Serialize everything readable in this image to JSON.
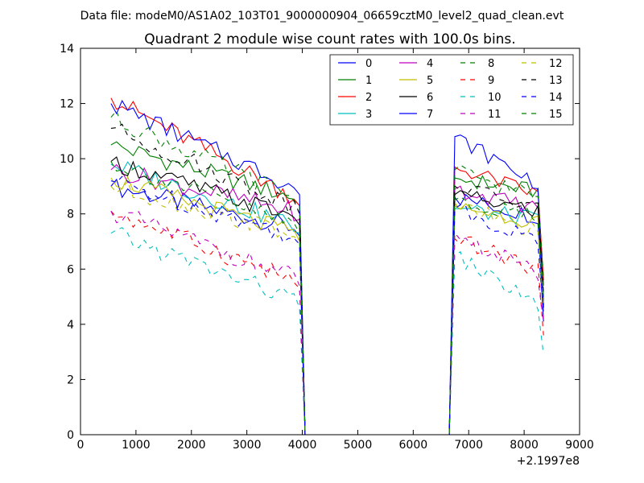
{
  "chart_data": {
    "type": "line",
    "suptitle": "Data file: modeM0/AS1A02_103T01_9000000904_06659cztM0_level2_quad_clean.evt",
    "title": "Quadrant 2 module wise count rates with 100.0s bins.",
    "xlabel": "",
    "ylabel": "",
    "x_offset_label": "+2.1997e8",
    "xlim": [
      0,
      9000
    ],
    "ylim": [
      0,
      14
    ],
    "xticks": [
      0,
      1000,
      2000,
      3000,
      4000,
      5000,
      6000,
      7000,
      8000,
      9000
    ],
    "yticks": [
      0,
      2,
      4,
      6,
      8,
      10,
      12,
      14
    ],
    "x_seg1": [
      550,
      650,
      750,
      850,
      950,
      1050,
      1150,
      1250,
      1350,
      1450,
      1550,
      1650,
      1750,
      1850,
      1950,
      2050,
      2150,
      2250,
      2350,
      2450,
      2550,
      2650,
      2750,
      2850,
      2950,
      3050,
      3150,
      3250,
      3350,
      3450,
      3550,
      3650,
      3750,
      3850,
      3950,
      4050
    ],
    "gap": [
      4150,
      6650
    ],
    "x_seg2": [
      6750,
      6850,
      6950,
      7050,
      7150,
      7250,
      7350,
      7450,
      7550,
      7650,
      7750,
      7850,
      7950,
      8050,
      8150,
      8250,
      8350
    ],
    "series": [
      {
        "name": "0",
        "color": "#0000ff",
        "dash": "solid",
        "seg1_base": 9.0,
        "seg1_end": 7.5,
        "seg2_base": 8.6,
        "seg2_end": 7.9,
        "last": 4.1
      },
      {
        "name": "1",
        "color": "#008000",
        "dash": "solid",
        "seg1_base": 10.5,
        "seg1_end": 8.6,
        "seg2_base": 9.3,
        "seg2_end": 8.8,
        "last": 5.4
      },
      {
        "name": "2",
        "color": "#ff0000",
        "dash": "solid",
        "seg1_base": 12.2,
        "seg1_end": 8.6,
        "seg2_base": 9.7,
        "seg2_end": 8.7,
        "last": 5.6
      },
      {
        "name": "3",
        "color": "#00bfbf",
        "dash": "solid",
        "seg1_base": 9.8,
        "seg1_end": 7.6,
        "seg2_base": 8.2,
        "seg2_end": 7.8,
        "last": 4.6
      },
      {
        "name": "4",
        "color": "#bf00bf",
        "dash": "solid",
        "seg1_base": 9.6,
        "seg1_end": 8.1,
        "seg2_base": 8.9,
        "seg2_end": 8.2,
        "last": 5.0
      },
      {
        "name": "5",
        "color": "#bfbf00",
        "dash": "solid",
        "seg1_base": 9.3,
        "seg1_end": 7.3,
        "seg2_base": 8.3,
        "seg2_end": 7.7,
        "last": 4.9
      },
      {
        "name": "6",
        "color": "#000000",
        "dash": "solid",
        "seg1_base": 9.9,
        "seg1_end": 7.9,
        "seg2_base": 8.7,
        "seg2_end": 8.1,
        "last": 4.7
      },
      {
        "name": "7",
        "color": "#0000ff",
        "dash": "solid",
        "seg1_base": 12.0,
        "seg1_end": 9.0,
        "seg2_base": 10.8,
        "seg2_end": 9.1,
        "last": 4.6
      },
      {
        "name": "8",
        "color": "#008000",
        "dash": "dashed",
        "seg1_base": 11.5,
        "seg1_end": 8.6,
        "seg2_base": 9.6,
        "seg2_end": 8.6,
        "last": 5.7
      },
      {
        "name": "9",
        "color": "#ff0000",
        "dash": "dashed",
        "seg1_base": 8.1,
        "seg1_end": 5.6,
        "seg2_base": 7.1,
        "seg2_end": 6.0,
        "last": 3.6
      },
      {
        "name": "10",
        "color": "#00bfbf",
        "dash": "dashed",
        "seg1_base": 7.3,
        "seg1_end": 4.9,
        "seg2_base": 6.5,
        "seg2_end": 4.7,
        "last": 2.9
      },
      {
        "name": "11",
        "color": "#bf00bf",
        "dash": "dashed",
        "seg1_base": 8.1,
        "seg1_end": 5.7,
        "seg2_base": 7.3,
        "seg2_end": 5.8,
        "last": 4.1
      },
      {
        "name": "12",
        "color": "#bfbf00",
        "dash": "dashed",
        "seg1_base": 9.0,
        "seg1_end": 7.3,
        "seg2_base": 8.4,
        "seg2_end": 7.3,
        "last": 4.6
      },
      {
        "name": "13",
        "color": "#000000",
        "dash": "dashed",
        "seg1_base": 11.1,
        "seg1_end": 8.3,
        "seg2_base": 9.0,
        "seg2_end": 8.2,
        "last": 5.1
      },
      {
        "name": "14",
        "color": "#0000ff",
        "dash": "dashed",
        "seg1_base": 9.2,
        "seg1_end": 7.2,
        "seg2_base": 8.2,
        "seg2_end": 7.0,
        "last": 4.4
      },
      {
        "name": "15",
        "color": "#008000",
        "dash": "dashed",
        "seg1_base": 9.9,
        "seg1_end": 7.6,
        "seg2_base": 8.5,
        "seg2_end": 7.9,
        "last": 5.0
      }
    ],
    "legend": {
      "location": "upper-right",
      "columns": 4
    },
    "grid": false
  }
}
